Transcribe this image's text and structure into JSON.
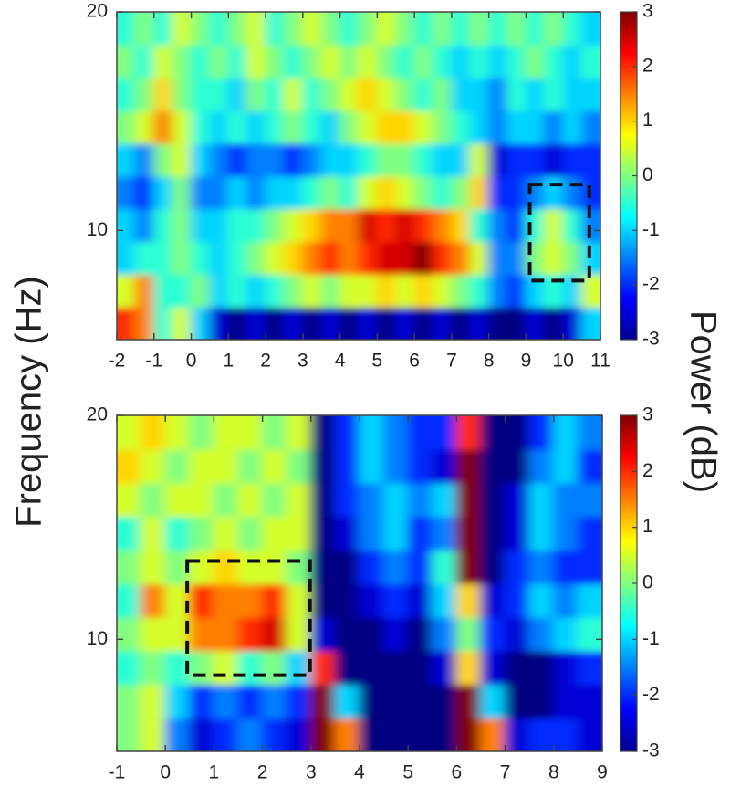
{
  "ylabel": "Frequency (Hz)",
  "colorbar_label": "Power (dB)",
  "chart_data": [
    {
      "type": "heatmap",
      "colormap": "jet",
      "x": [
        -1.75,
        -1.25,
        -0.75,
        -0.25,
        0.25,
        0.75,
        1.25,
        1.75,
        2.25,
        2.75,
        3.25,
        3.75,
        4.25,
        4.75,
        5.25,
        5.75,
        6.25,
        6.75,
        7.25,
        7.75,
        8.25,
        8.75,
        9.25,
        9.75,
        10.25,
        10.75
      ],
      "y": [
        5.75,
        7.25,
        8.75,
        10.25,
        11.75,
        13.25,
        14.75,
        16.25,
        17.75,
        19.25
      ],
      "values": [
        [
          2,
          1.5,
          -0.5,
          0.5,
          -1,
          -2.5,
          -3,
          -2.5,
          -3,
          -2.5,
          -3,
          -2.5,
          -3,
          -2.5,
          -3,
          -2.5,
          -3,
          -2.5,
          -3,
          -2.5,
          -3,
          -3,
          -2.5,
          -3,
          -2.5,
          -1
        ],
        [
          0.5,
          1.5,
          -0.5,
          -0.5,
          0,
          -1,
          -0.5,
          -1,
          -0.5,
          0,
          0.5,
          0,
          0.5,
          0.5,
          1,
          0.5,
          1,
          0.5,
          0,
          -0.5,
          -1.5,
          -2,
          -1,
          -0.5,
          -1,
          0.5
        ],
        [
          -1,
          -0.5,
          -0.5,
          0,
          -0.5,
          -1,
          -0.5,
          0,
          0.5,
          1,
          1.5,
          2,
          1.5,
          2,
          2.5,
          2.5,
          3,
          2,
          1.5,
          0.5,
          -1.5,
          -1.5,
          0,
          0.5,
          0,
          -1
        ],
        [
          -1,
          -1.5,
          -0.5,
          0,
          -1,
          -1,
          -0.5,
          -0.5,
          0,
          0.5,
          1,
          1.5,
          1.5,
          2.5,
          2,
          2.5,
          2,
          1.5,
          1,
          -0.5,
          -1.5,
          -2,
          -0.5,
          0.5,
          -0.5,
          -1.5
        ],
        [
          -1.5,
          -2,
          -1,
          0,
          -1.5,
          -1.5,
          -1,
          -1.5,
          -1,
          -1,
          -0.5,
          0,
          -0.5,
          0.5,
          1,
          0.5,
          0,
          -0.5,
          0,
          1,
          -2,
          -2,
          -1.5,
          -1,
          -1.5,
          -2
        ],
        [
          -1,
          -1.5,
          0,
          0.5,
          -1,
          -1.5,
          -2,
          -1.5,
          -1.5,
          -2,
          -1.5,
          -1,
          -1,
          -0.5,
          0,
          0,
          -0.5,
          -1,
          -1,
          0.5,
          -2.5,
          -2,
          -2,
          -2.5,
          -2,
          -2
        ],
        [
          0,
          0.5,
          1.5,
          0.5,
          -0.5,
          -1,
          -0.5,
          -1,
          -0.5,
          0,
          -0.5,
          -1,
          0,
          0.5,
          1,
          1,
          0.5,
          0,
          -0.5,
          -1,
          -1.5,
          -1,
          -1,
          -1.5,
          -1,
          -1.5
        ],
        [
          -0.5,
          0,
          1,
          0,
          -0.5,
          -0.5,
          -1,
          0,
          -0.5,
          0.5,
          -0.5,
          0,
          0.5,
          1,
          0.5,
          0,
          -0.5,
          0,
          -1,
          -1,
          -1.5,
          -0.5,
          -1,
          -0.5,
          -1,
          -1
        ],
        [
          0,
          -0.5,
          0.5,
          0,
          -0.5,
          0,
          -0.5,
          0.5,
          0,
          -0.5,
          0,
          0.5,
          0,
          0.5,
          0,
          -0.5,
          0,
          -0.5,
          -1,
          -0.5,
          -1,
          -0.5,
          0,
          -0.5,
          -1,
          -0.5
        ],
        [
          -0.5,
          0,
          -0.5,
          0.5,
          0,
          -0.5,
          0,
          0.5,
          -0.5,
          0,
          0.5,
          0,
          -0.5,
          0,
          0.5,
          0,
          -0.5,
          0,
          -0.5,
          0,
          -0.5,
          0,
          -0.5,
          0,
          -0.5,
          -1
        ]
      ],
      "xlim": [
        -2,
        11
      ],
      "xticks": [
        -2,
        -1,
        0,
        1,
        2,
        3,
        4,
        5,
        6,
        7,
        8,
        9,
        10,
        11
      ],
      "ylim": [
        5,
        20
      ],
      "yticks": [
        10,
        20
      ],
      "clim": [
        -3,
        3
      ],
      "cticks": [
        -3,
        -2,
        -1,
        0,
        1,
        2,
        3
      ],
      "boxes": [
        {
          "x": [
            9.1,
            10.7
          ],
          "y": [
            7.7,
            12.1
          ]
        }
      ]
    },
    {
      "type": "heatmap",
      "colormap": "jet",
      "x": [
        -0.75,
        -0.25,
        0.25,
        0.75,
        1.25,
        1.75,
        2.25,
        2.75,
        3.25,
        3.75,
        4.25,
        4.75,
        5.25,
        5.75,
        6.25,
        6.75,
        7.25,
        7.75,
        8.25,
        8.75
      ],
      "y": [
        5.75,
        7.25,
        8.75,
        10.25,
        11.75,
        13.25,
        14.75,
        16.25,
        17.75,
        19.25
      ],
      "values": [
        [
          0,
          0.5,
          -1.5,
          -2.5,
          -2,
          -1.5,
          -2,
          -2.5,
          3,
          1.5,
          -3,
          -3,
          -3,
          -3,
          3,
          1.5,
          -2.5,
          -2,
          -2,
          -2.5
        ],
        [
          0,
          0.5,
          -1,
          -2,
          -1.5,
          -2,
          -1.5,
          -2,
          3,
          -1,
          -3,
          -3,
          -3,
          -3,
          3,
          -1,
          -3,
          -3,
          -2.5,
          -2.5
        ],
        [
          -0.5,
          0,
          -0.5,
          0,
          0.5,
          -0.5,
          0,
          -1,
          2,
          -3,
          -3,
          -3,
          -3,
          -2.5,
          1,
          -2.5,
          -3,
          -3,
          -2.5,
          -2
        ],
        [
          0,
          0.5,
          0.5,
          1.5,
          1.5,
          2,
          2.5,
          0.5,
          -2.5,
          -3,
          -3,
          -2.5,
          -3,
          -1.5,
          0,
          -2,
          -2.5,
          -1.5,
          -1,
          -0.5
        ],
        [
          -0.5,
          1.5,
          0.5,
          2,
          1.5,
          1.5,
          2,
          0.5,
          -3,
          -3,
          -2.5,
          -2,
          -2.5,
          -1,
          1,
          -2.5,
          -2,
          -1,
          -1.5,
          -1
        ],
        [
          0,
          0.5,
          0,
          0.5,
          1,
          0.5,
          0.5,
          0,
          -3,
          -3,
          -2,
          -1.5,
          -2,
          -0.5,
          3,
          -3,
          -2,
          -1.5,
          -2,
          -2
        ],
        [
          -0.5,
          0.5,
          -0.5,
          0,
          0.5,
          0,
          0.5,
          0.5,
          -3,
          -2.5,
          -1.5,
          -1,
          -2,
          -1.5,
          3,
          -3,
          -2.5,
          -1,
          -1.5,
          -2
        ],
        [
          0.5,
          0,
          0.5,
          0.5,
          0,
          0.5,
          0,
          0.5,
          -3,
          -2,
          -1.5,
          -1,
          -1.5,
          -1,
          3,
          -3,
          -2.5,
          -1,
          -1.5,
          -1.5
        ],
        [
          1,
          0.5,
          0,
          0.5,
          0.5,
          0,
          0.5,
          0,
          -3,
          -2,
          -1,
          -1.5,
          -2,
          -2.5,
          3,
          -3,
          -3,
          -1.5,
          -1,
          -2
        ],
        [
          0.5,
          1,
          0.5,
          0,
          0.5,
          0.5,
          0,
          0.5,
          -3,
          -2,
          -1,
          -1.5,
          -2,
          -2,
          2,
          -3,
          -3,
          -2,
          -1,
          -1.5
        ]
      ],
      "xlim": [
        -1,
        9
      ],
      "xticks": [
        -1,
        0,
        1,
        2,
        3,
        4,
        5,
        6,
        7,
        8,
        9
      ],
      "ylim": [
        5,
        20
      ],
      "yticks": [
        10,
        20
      ],
      "clim": [
        -3,
        3
      ],
      "cticks": [
        -3,
        -2,
        -1,
        0,
        1,
        2,
        3
      ],
      "boxes": [
        {
          "x": [
            0.45,
            2.98
          ],
          "y": [
            8.4,
            13.5
          ]
        }
      ]
    }
  ]
}
